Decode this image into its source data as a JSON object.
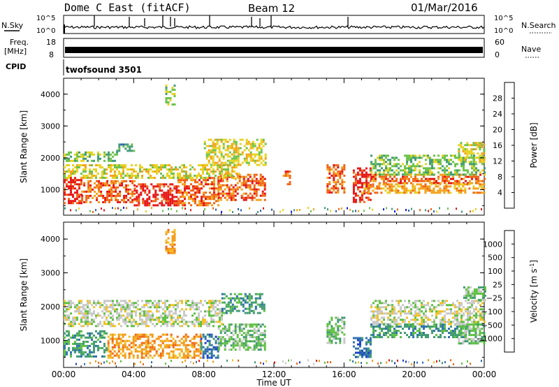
{
  "header": {
    "station": "Dome C East (fitACF)",
    "beam": "Beam 12",
    "date": "01/Mar/2016"
  },
  "strip_labels": {
    "nsky": "N.Sky",
    "nsky_ticks": [
      "10^5",
      "10^0"
    ],
    "nsearch": "N.Search",
    "nsearch_ticks": [
      "10^5",
      "10^0"
    ],
    "freq_line1": "Freq.",
    "freq_line2": "[MHz]",
    "freq_ticks": [
      "18",
      "8"
    ],
    "nave": "Nave",
    "nave_ticks": [
      "60",
      "0"
    ],
    "cpid": "CPID",
    "cpid_value": "twofsound 3501"
  },
  "chart_data": [
    {
      "type": "heatmap",
      "name": "power-panel",
      "ylabel": "Slant Range [km]",
      "yticks": [
        1000,
        2000,
        3000,
        4000
      ],
      "ylim": [
        200,
        4500
      ],
      "xlim": [
        0,
        24
      ],
      "colorbar": {
        "label": "Power [dB]",
        "ticks": [
          "4",
          "8",
          "12",
          "16",
          "20",
          "24",
          "28"
        ],
        "colors": [
          "#1414e6",
          "#2b5fb0",
          "#3f9a78",
          "#6cc24a",
          "#e6d21e",
          "#f3a21a",
          "#f06414",
          "#e61414"
        ]
      },
      "echo_regions": [
        {
          "t": [
            0.0,
            1.0
          ],
          "range": [
            600,
            1400
          ],
          "level": 7
        },
        {
          "t": [
            1.0,
            4.0
          ],
          "range": [
            600,
            1300
          ],
          "level": 6
        },
        {
          "t": [
            4.0,
            6.5
          ],
          "range": [
            500,
            1200
          ],
          "level": 7
        },
        {
          "t": [
            6.5,
            8.8
          ],
          "range": [
            500,
            1400
          ],
          "level": 6
        },
        {
          "t": [
            8.8,
            11.5
          ],
          "range": [
            700,
            1500
          ],
          "level": 6
        },
        {
          "t": [
            0.0,
            10.0
          ],
          "range": [
            1400,
            1800
          ],
          "level": 4
        },
        {
          "t": [
            0.0,
            3.0
          ],
          "range": [
            1900,
            2200
          ],
          "level": 3
        },
        {
          "t": [
            3.0,
            4.0
          ],
          "range": [
            2200,
            2450
          ],
          "level": 2
        },
        {
          "t": [
            8.0,
            11.5
          ],
          "range": [
            1800,
            2600
          ],
          "level": 4
        },
        {
          "t": [
            12.5,
            12.9
          ],
          "range": [
            1200,
            1600
          ],
          "level": 6
        },
        {
          "t": [
            15.0,
            16.0
          ],
          "range": [
            900,
            1800
          ],
          "level": 6
        },
        {
          "t": [
            16.5,
            17.5
          ],
          "range": [
            600,
            1700
          ],
          "level": 7
        },
        {
          "t": [
            17.5,
            24.0
          ],
          "range": [
            1200,
            1500
          ],
          "level": 6
        },
        {
          "t": [
            17.0,
            24.0
          ],
          "range": [
            900,
            1200
          ],
          "level": 5
        },
        {
          "t": [
            17.5,
            24.0
          ],
          "range": [
            1500,
            2100
          ],
          "level": 3
        },
        {
          "t": [
            22.5,
            24.0
          ],
          "range": [
            1900,
            2500
          ],
          "level": 4
        },
        {
          "t": [
            5.8,
            6.3
          ],
          "range": [
            3700,
            4300
          ],
          "level": 3
        }
      ]
    },
    {
      "type": "heatmap",
      "name": "velocity-panel",
      "xlabel": "Time UT",
      "xticks": [
        "00:00",
        "04:00",
        "08:00",
        "12:00",
        "16:00",
        "20:00",
        "00:00"
      ],
      "ylabel": "Slant Range [km]",
      "yticks": [
        1000,
        2000,
        3000,
        4000
      ],
      "ylim": [
        200,
        4500
      ],
      "xlim": [
        0,
        24
      ],
      "colorbar": {
        "label": "Velocity [m s",
        "label_exp": "-1",
        "ticks": [
          "1000",
          "500",
          "100",
          "25",
          "−25",
          "−100",
          "−500",
          "−1000"
        ],
        "colors": [
          "#1a3ec8",
          "#2e6fb0",
          "#3f9a70",
          "#5cc040",
          "#c8c8c8",
          "#f2c020",
          "#f39a18",
          "#f06414",
          "#e61414"
        ]
      },
      "echo_regions": [
        {
          "t": [
            0.0,
            2.5
          ],
          "range": [
            500,
            1300
          ],
          "level": 2
        },
        {
          "t": [
            2.5,
            7.8
          ],
          "range": [
            500,
            1200
          ],
          "level": 6
        },
        {
          "t": [
            7.8,
            8.8
          ],
          "range": [
            500,
            1200
          ],
          "level": 1
        },
        {
          "t": [
            8.8,
            11.5
          ],
          "range": [
            700,
            1500
          ],
          "level": 3
        },
        {
          "t": [
            0.0,
            9.0
          ],
          "range": [
            1400,
            2200
          ],
          "level": 4
        },
        {
          "t": [
            9.0,
            11.5
          ],
          "range": [
            1800,
            2400
          ],
          "level": 2
        },
        {
          "t": [
            15.0,
            16.0
          ],
          "range": [
            900,
            1700
          ],
          "level": 3
        },
        {
          "t": [
            16.5,
            17.5
          ],
          "range": [
            500,
            1100
          ],
          "level": 1
        },
        {
          "t": [
            17.5,
            23.0
          ],
          "range": [
            1100,
            1500
          ],
          "level": 2
        },
        {
          "t": [
            17.5,
            24.0
          ],
          "range": [
            1500,
            2200
          ],
          "level": 4
        },
        {
          "t": [
            22.5,
            24.0
          ],
          "range": [
            900,
            1500
          ],
          "level": 3
        },
        {
          "t": [
            22.8,
            24.0
          ],
          "range": [
            2200,
            2600
          ],
          "level": 3
        },
        {
          "t": [
            5.8,
            6.3
          ],
          "range": [
            3600,
            4300
          ],
          "level": 6
        }
      ]
    }
  ]
}
